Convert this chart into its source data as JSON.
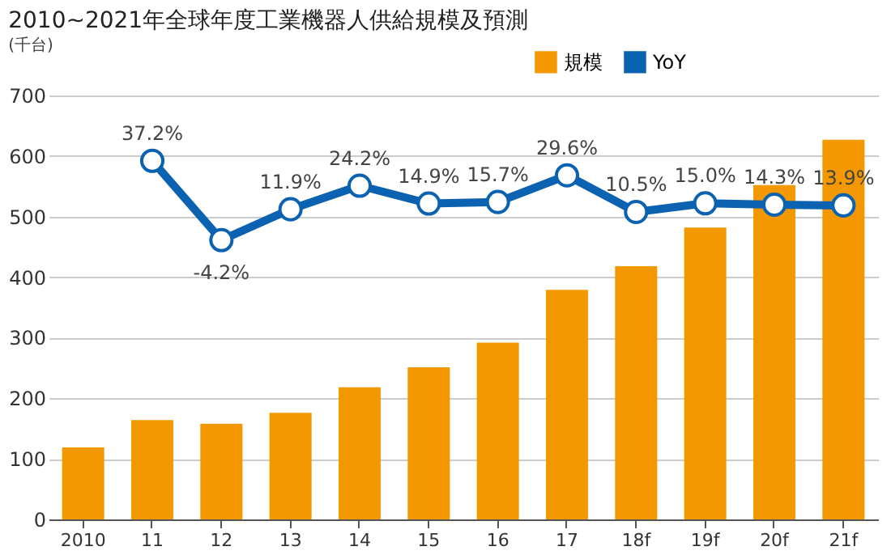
{
  "chart_data": {
    "type": "bar",
    "title": "2010~2021年全球年度工業機器人供給規模及預測",
    "subtitle": "(千台)",
    "categories": [
      "2010",
      "11",
      "12",
      "13",
      "14",
      "15",
      "16",
      "17",
      "18f",
      "19f",
      "20f",
      "21f"
    ],
    "series": [
      {
        "name": "規模",
        "color": "#f39800",
        "values": [
          119,
          164,
          158,
          176,
          218,
          251,
          292,
          379,
          418,
          482,
          552,
          627
        ]
      },
      {
        "name": "YoY",
        "type": "line",
        "axis": "y2",
        "color": "#0a62b0",
        "marker": "circle",
        "values": [
          null,
          37.2,
          -4.2,
          11.9,
          24.2,
          14.9,
          15.7,
          29.6,
          10.5,
          15.0,
          14.3,
          13.9
        ],
        "value_labels": [
          null,
          "37.2%",
          "-4.2%",
          "11.9%",
          "24.2%",
          "14.9%",
          "15.7%",
          "29.6%",
          "10.5%",
          "15.0%",
          "14.3%",
          "13.9%"
        ]
      }
    ],
    "ylim": [
      0,
      700
    ],
    "yticks": [
      0,
      100,
      200,
      300,
      400,
      500,
      600,
      700
    ],
    "y2lim": [
      -150,
      71.3
    ],
    "grid": "y",
    "legend": "top right"
  }
}
